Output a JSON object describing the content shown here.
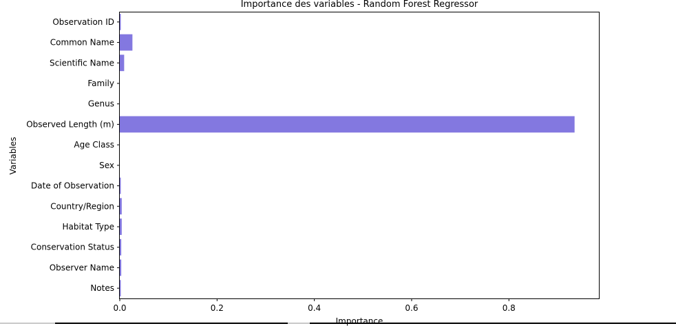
{
  "chart_data": {
    "type": "bar",
    "orientation": "horizontal",
    "title": "Importance des variables - Random Forest Regressor",
    "xlabel": "Importance",
    "ylabel": "Variables",
    "categories": [
      "Observation ID",
      "Common Name",
      "Scientific Name",
      "Family",
      "Genus",
      "Observed Length (m)",
      "Age Class",
      "Sex",
      "Date of Observation",
      "Country/Region",
      "Habitat Type",
      "Conservation Status",
      "Observer Name",
      "Notes"
    ],
    "values": [
      0.002,
      0.026,
      0.009,
      0.0,
      0.0,
      0.935,
      0.0,
      0.0,
      0.002,
      0.004,
      0.004,
      0.003,
      0.003,
      0.002
    ],
    "xlim": [
      0,
      0.985
    ],
    "xticks": [
      0.0,
      0.2,
      0.4,
      0.6,
      0.8
    ],
    "xtick_labels": [
      "0.0",
      "0.2",
      "0.4",
      "0.6",
      "0.8"
    ],
    "grid": false,
    "bar_color": "#8378e0"
  }
}
